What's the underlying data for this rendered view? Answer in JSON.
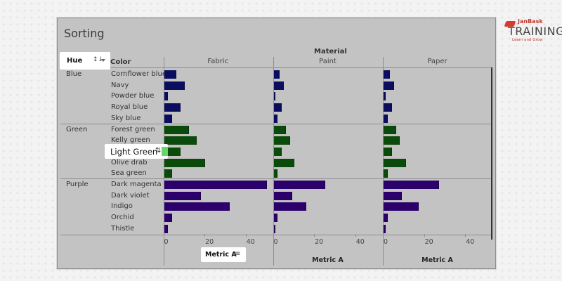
{
  "header": {
    "title": "Sorting"
  },
  "logo": {
    "brand": "JanBask",
    "name": "TRAINING",
    "tagline": "Learn and Grow"
  },
  "pills": {
    "hue": {
      "label": "Hue",
      "sort_icon": "sort-alpha-icon"
    },
    "light_green": {
      "label": "Light Green",
      "icon": "drag-icon"
    },
    "metric": {
      "label": "Metric A",
      "sort_icon": "sort-desc-icon"
    }
  },
  "columns": {
    "color_header": "Color",
    "material_header": "Material"
  },
  "axis": {
    "label": "Metric A",
    "ticks": [
      "0",
      "20",
      "40"
    ]
  },
  "colors": {
    "Blue": "#0b0e5e",
    "Green": "#0a4a0a",
    "Purple": "#2c006a",
    "highlight": "#6bd36b",
    "panel_bg": "#c3c3c3"
  },
  "chart_data": {
    "type": "bar",
    "orientation": "horizontal",
    "title": "Sorting",
    "column_header": "Material",
    "row_headers": [
      "Hue",
      "Color"
    ],
    "panels": [
      "Fabric",
      "Paint",
      "Paper"
    ],
    "xlabel": "Metric A",
    "xlim": [
      0,
      52
    ],
    "x_ticks": [
      0,
      20,
      40
    ],
    "grid": true,
    "groups": [
      {
        "hue": "Blue",
        "colors": [
          "Cornflower blue",
          "Navy",
          "Powder blue",
          "Royal blue",
          "Sky blue"
        ]
      },
      {
        "hue": "Green",
        "colors": [
          "Forest green",
          "Kelly green",
          "Light Green",
          "Olive drab",
          "Sea green"
        ]
      },
      {
        "hue": "Purple",
        "colors": [
          "Dark magenta",
          "Dark violet",
          "Indigo",
          "Orchid",
          "Thistle"
        ]
      }
    ],
    "categories": [
      "Cornflower blue",
      "Navy",
      "Powder blue",
      "Royal blue",
      "Sky blue",
      "Forest green",
      "Kelly green",
      "Light Green",
      "Olive drab",
      "Sea green",
      "Dark magenta",
      "Dark violet",
      "Indigo",
      "Orchid",
      "Thistle"
    ],
    "series": [
      {
        "name": "Fabric",
        "values": [
          6,
          10,
          2,
          8,
          4,
          12,
          16,
          8,
          20,
          4,
          50,
          18,
          32,
          4,
          2
        ]
      },
      {
        "name": "Paint",
        "values": [
          3,
          5,
          1,
          4,
          2,
          6,
          8,
          4,
          10,
          2,
          25,
          9,
          16,
          2,
          1
        ]
      },
      {
        "name": "Paper",
        "values": [
          3,
          5,
          1,
          4,
          2,
          6,
          8,
          4,
          11,
          2,
          27,
          9,
          17,
          2,
          1
        ]
      }
    ]
  }
}
